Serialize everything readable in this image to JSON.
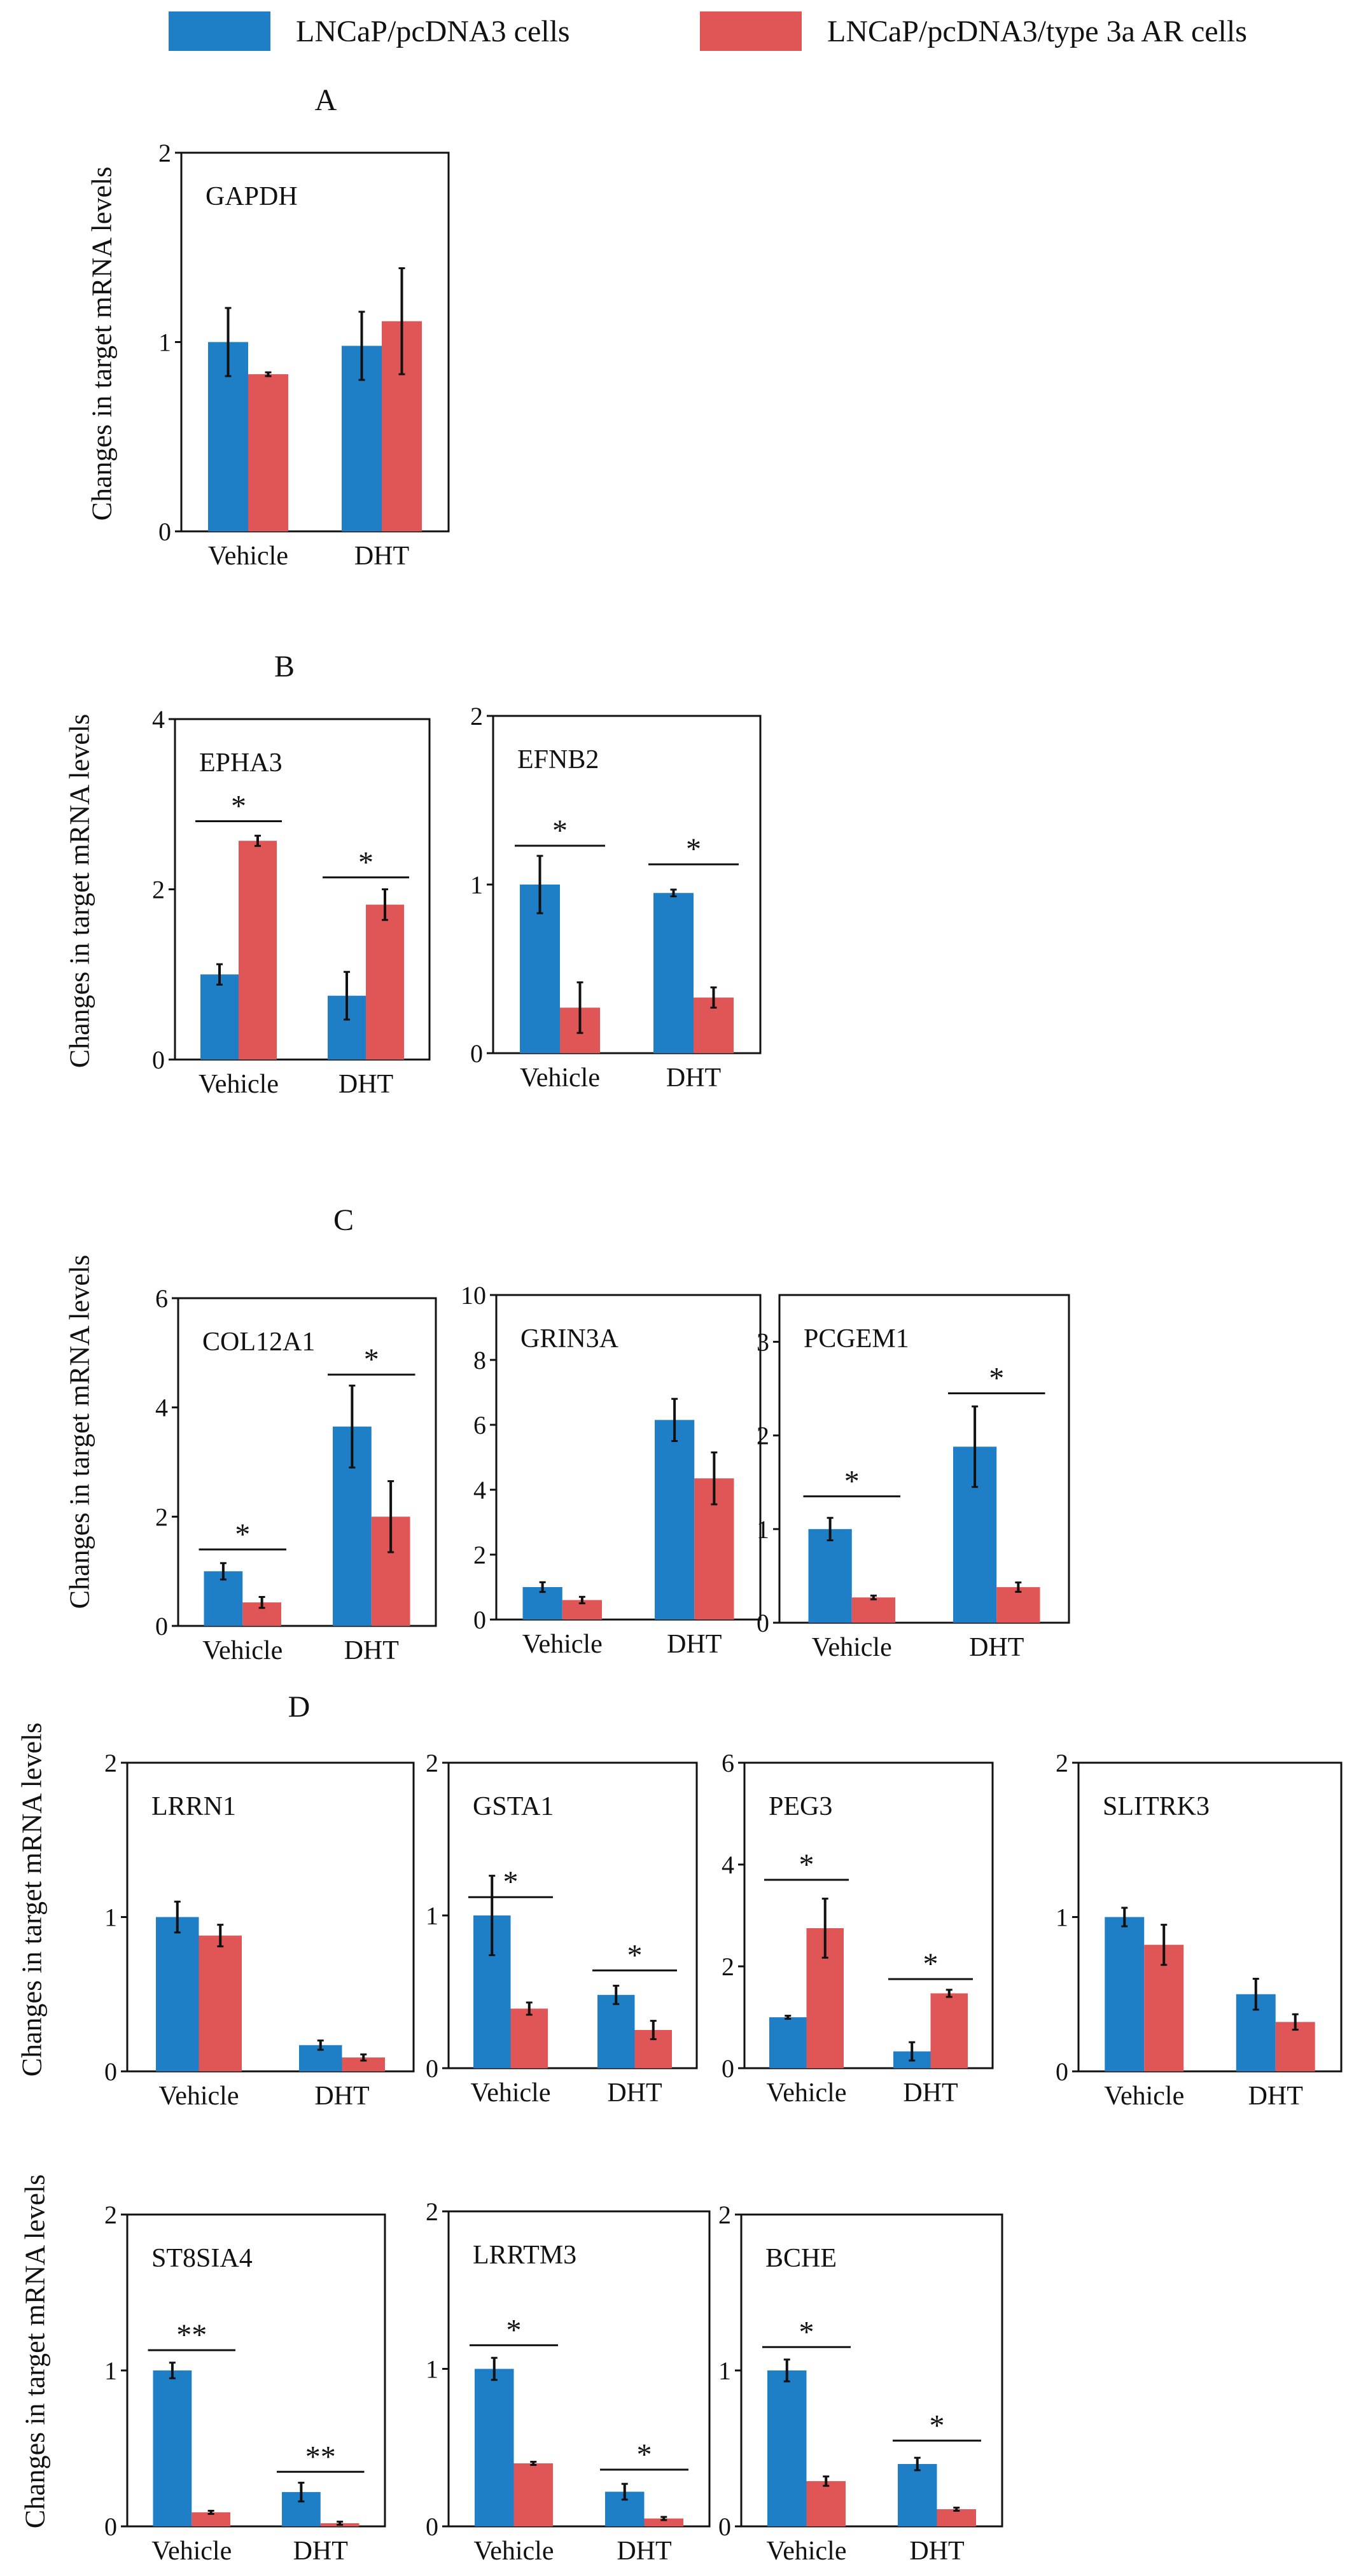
{
  "colors": {
    "series1": "#1f7fc6",
    "series2": "#e05555"
  },
  "legend": [
    {
      "name": "LNCaP/pcDNA3 cells",
      "color": "#1f7fc6"
    },
    {
      "name": "LNCaP/pcDNA3/type 3a AR cells",
      "color": "#e05555"
    }
  ],
  "panels": [
    {
      "letter": "A"
    },
    {
      "letter": "B"
    },
    {
      "letter": "C"
    },
    {
      "letter": "D"
    }
  ],
  "ylabel": "Changes in target mRNA levels",
  "chart_data": [
    {
      "type": "bar",
      "panel": "A",
      "title": "GAPDH",
      "categories": [
        "Vehicle",
        "DHT"
      ],
      "ylim": [
        0,
        2
      ],
      "yticks": [
        0,
        1,
        2
      ],
      "ylabel": "Changes in target mRNA levels",
      "series": [
        {
          "name": "LNCaP/pcDNA3 cells",
          "values": [
            1.0,
            0.98
          ],
          "errors": [
            0.18,
            0.18
          ]
        },
        {
          "name": "LNCaP/pcDNA3/type 3a AR cells",
          "values": [
            0.83,
            1.11
          ],
          "errors": [
            0.01,
            0.28
          ]
        }
      ],
      "annotations": []
    },
    {
      "type": "bar",
      "panel": "B",
      "title": "EPHA3",
      "categories": [
        "Vehicle",
        "DHT"
      ],
      "ylim": [
        0,
        4
      ],
      "yticks": [
        0,
        2,
        4
      ],
      "ylabel": "Changes in target mRNA levels",
      "series": [
        {
          "name": "LNCaP/pcDNA3 cells",
          "values": [
            1.0,
            0.75
          ],
          "errors": [
            0.12,
            0.28
          ]
        },
        {
          "name": "LNCaP/pcDNA3/type 3a AR cells",
          "values": [
            2.57,
            1.82
          ],
          "errors": [
            0.06,
            0.18
          ]
        }
      ],
      "annotations": [
        {
          "category": 0,
          "text": "*",
          "y": 2.8
        },
        {
          "category": 1,
          "text": "*",
          "y": 2.14
        }
      ]
    },
    {
      "type": "bar",
      "panel": "B",
      "title": "EFNB2",
      "categories": [
        "Vehicle",
        "DHT"
      ],
      "ylim": [
        0,
        2
      ],
      "yticks": [
        0,
        1,
        2
      ],
      "series": [
        {
          "name": "LNCaP/pcDNA3 cells",
          "values": [
            1.0,
            0.95
          ],
          "errors": [
            0.17,
            0.02
          ]
        },
        {
          "name": "LNCaP/pcDNA3/type 3a AR cells",
          "values": [
            0.27,
            0.33
          ],
          "errors": [
            0.15,
            0.06
          ]
        }
      ],
      "annotations": [
        {
          "category": 0,
          "text": "*",
          "y": 1.23
        },
        {
          "category": 1,
          "text": "*",
          "y": 1.12
        }
      ]
    },
    {
      "type": "bar",
      "panel": "C",
      "title": "COL12A1",
      "categories": [
        "Vehicle",
        "DHT"
      ],
      "ylim": [
        0,
        6
      ],
      "yticks": [
        0,
        2,
        4,
        6
      ],
      "ylabel": "Changes in target mRNA levels",
      "series": [
        {
          "name": "LNCaP/pcDNA3 cells",
          "values": [
            1.0,
            3.65
          ],
          "errors": [
            0.15,
            0.75
          ]
        },
        {
          "name": "LNCaP/pcDNA3/type 3a AR cells",
          "values": [
            0.43,
            2.0
          ],
          "errors": [
            0.1,
            0.65
          ]
        }
      ],
      "annotations": [
        {
          "category": 0,
          "text": "*",
          "y": 1.4
        },
        {
          "category": 1,
          "text": "*",
          "y": 4.6
        }
      ]
    },
    {
      "type": "bar",
      "panel": "C",
      "title": "GRIN3A",
      "categories": [
        "Vehicle",
        "DHT"
      ],
      "ylim": [
        0,
        10
      ],
      "yticks": [
        0,
        2,
        4,
        6,
        8,
        10
      ],
      "series": [
        {
          "name": "LNCaP/pcDNA3 cells",
          "values": [
            1.0,
            6.15
          ],
          "errors": [
            0.15,
            0.65
          ]
        },
        {
          "name": "LNCaP/pcDNA3/type 3a AR cells",
          "values": [
            0.6,
            4.35
          ],
          "errors": [
            0.1,
            0.8
          ]
        }
      ],
      "annotations": []
    },
    {
      "type": "bar",
      "panel": "C",
      "title": "PCGEM1",
      "categories": [
        "Vehicle",
        "DHT"
      ],
      "ylim": [
        0,
        3.5
      ],
      "yticks": [
        0,
        1,
        2,
        3
      ],
      "series": [
        {
          "name": "LNCaP/pcDNA3 cells",
          "values": [
            1.0,
            1.88
          ],
          "errors": [
            0.12,
            0.43
          ]
        },
        {
          "name": "LNCaP/pcDNA3/type 3a AR cells",
          "values": [
            0.27,
            0.38
          ],
          "errors": [
            0.02,
            0.05
          ]
        }
      ],
      "annotations": [
        {
          "category": 0,
          "text": "*",
          "y": 1.35
        },
        {
          "category": 1,
          "text": "*",
          "y": 2.45
        }
      ]
    },
    {
      "type": "bar",
      "panel": "D",
      "title": "LRRN1",
      "categories": [
        "Vehicle",
        "DHT"
      ],
      "ylim": [
        0,
        2
      ],
      "yticks": [
        0,
        1,
        2
      ],
      "ylabel": "Changes in target mRNA levels",
      "series": [
        {
          "name": "LNCaP/pcDNA3 cells",
          "values": [
            1.0,
            0.17
          ],
          "errors": [
            0.1,
            0.03
          ]
        },
        {
          "name": "LNCaP/pcDNA3/type 3a AR cells",
          "values": [
            0.88,
            0.09
          ],
          "errors": [
            0.07,
            0.02
          ]
        }
      ],
      "annotations": []
    },
    {
      "type": "bar",
      "panel": "D",
      "title": "GSTA1",
      "categories": [
        "Vehicle",
        "DHT"
      ],
      "ylim": [
        0,
        2
      ],
      "yticks": [
        0,
        1,
        2
      ],
      "series": [
        {
          "name": "LNCaP/pcDNA3 cells",
          "values": [
            1.0,
            0.48
          ],
          "errors": [
            0.26,
            0.06
          ]
        },
        {
          "name": "LNCaP/pcDNA3/type 3a AR cells",
          "values": [
            0.39,
            0.25
          ],
          "errors": [
            0.04,
            0.06
          ]
        }
      ],
      "annotations": [
        {
          "category": 0,
          "text": "*",
          "y": 1.12
        },
        {
          "category": 1,
          "text": "*",
          "y": 0.64
        }
      ]
    },
    {
      "type": "bar",
      "panel": "D",
      "title": "PEG3",
      "categories": [
        "Vehicle",
        "DHT"
      ],
      "ylim": [
        0,
        6
      ],
      "yticks": [
        0,
        2,
        4,
        6
      ],
      "series": [
        {
          "name": "LNCaP/pcDNA3 cells",
          "values": [
            1.0,
            0.33
          ],
          "errors": [
            0.03,
            0.18
          ]
        },
        {
          "name": "LNCaP/pcDNA3/type 3a AR cells",
          "values": [
            2.75,
            1.47
          ],
          "errors": [
            0.58,
            0.07
          ]
        }
      ],
      "annotations": [
        {
          "category": 0,
          "text": "*",
          "y": 3.7
        },
        {
          "category": 1,
          "text": "*",
          "y": 1.75
        }
      ]
    },
    {
      "type": "bar",
      "panel": "D",
      "title": "SLITRK3",
      "categories": [
        "Vehicle",
        "DHT"
      ],
      "ylim": [
        0,
        2
      ],
      "yticks": [
        0,
        1,
        2
      ],
      "series": [
        {
          "name": "LNCaP/pcDNA3 cells",
          "values": [
            1.0,
            0.5
          ],
          "errors": [
            0.06,
            0.1
          ]
        },
        {
          "name": "LNCaP/pcDNA3/type 3a AR cells",
          "values": [
            0.82,
            0.32
          ],
          "errors": [
            0.13,
            0.05
          ]
        }
      ],
      "annotations": []
    },
    {
      "type": "bar",
      "panel": "D",
      "title": "ST8SIA4",
      "categories": [
        "Vehicle",
        "DHT"
      ],
      "ylim": [
        0,
        2
      ],
      "yticks": [
        0,
        1,
        2
      ],
      "ylabel": "Changes in target mRNA levels",
      "series": [
        {
          "name": "LNCaP/pcDNA3 cells",
          "values": [
            1.0,
            0.22
          ],
          "errors": [
            0.05,
            0.06
          ]
        },
        {
          "name": "LNCaP/pcDNA3/type 3a AR cells",
          "values": [
            0.09,
            0.02
          ],
          "errors": [
            0.01,
            0.01
          ]
        }
      ],
      "annotations": [
        {
          "category": 0,
          "text": "**",
          "y": 1.13
        },
        {
          "category": 1,
          "text": "**",
          "y": 0.35
        }
      ]
    },
    {
      "type": "bar",
      "panel": "D",
      "title": "LRRTM3",
      "categories": [
        "Vehicle",
        "DHT"
      ],
      "ylim": [
        0,
        2
      ],
      "yticks": [
        0,
        1,
        2
      ],
      "series": [
        {
          "name": "LNCaP/pcDNA3 cells",
          "values": [
            1.0,
            0.22
          ],
          "errors": [
            0.07,
            0.05
          ]
        },
        {
          "name": "LNCaP/pcDNA3/type 3a AR cells",
          "values": [
            0.4,
            0.05
          ],
          "errors": [
            0.01,
            0.01
          ]
        }
      ],
      "annotations": [
        {
          "category": 0,
          "text": "*",
          "y": 1.15
        },
        {
          "category": 1,
          "text": "*",
          "y": 0.36
        }
      ]
    },
    {
      "type": "bar",
      "panel": "D",
      "title": "BCHE",
      "categories": [
        "Vehicle",
        "DHT"
      ],
      "ylim": [
        0,
        2
      ],
      "yticks": [
        0,
        1,
        2
      ],
      "series": [
        {
          "name": "LNCaP/pcDNA3 cells",
          "values": [
            1.0,
            0.4
          ],
          "errors": [
            0.07,
            0.04
          ]
        },
        {
          "name": "LNCaP/pcDNA3/type 3a AR cells",
          "values": [
            0.29,
            0.11
          ],
          "errors": [
            0.03,
            0.01
          ]
        }
      ],
      "annotations": [
        {
          "category": 0,
          "text": "*",
          "y": 1.15
        },
        {
          "category": 1,
          "text": "*",
          "y": 0.55
        }
      ]
    }
  ]
}
